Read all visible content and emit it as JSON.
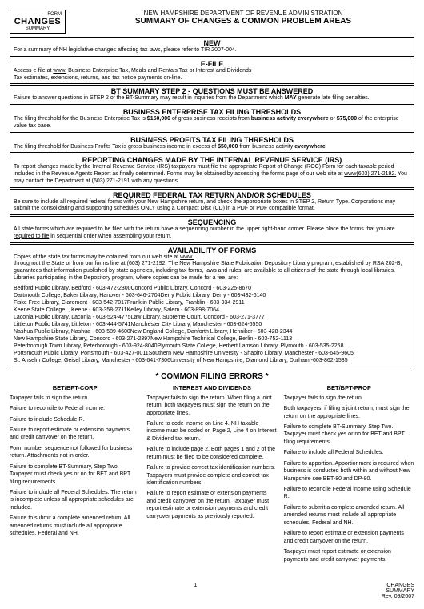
{
  "header": {
    "formLabel": "FORM",
    "changes": "CHANGES",
    "summary": "SUMMARY",
    "dept": "NEW HAMPSHIRE DEPARTMENT OF REVENUE ADMINISTRATION",
    "title": "SUMMARY OF CHANGES & COMMON PROBLEM AREAS"
  },
  "sections": {
    "new": {
      "title": "NEW",
      "body": "For a summary of NH legislative changes affecting tax laws, please refer to TIR 2007-004."
    },
    "efile": {
      "title": "E-FILE",
      "line1a": "Access e-file at ",
      "line1link": "www.",
      "line1b": " Business Enterprise Tax, Meals and Rentals Tax or Interest and Dividends",
      "line2": "Tax estimates, extensions, returns, and tax notice payments on-line."
    },
    "bt2": {
      "title": "BT SUMMARY STEP 2 - QUESTIONS MUST BE ANSWERED",
      "body1": "Failure to answer questions in STEP 2 of the BT-Summary may result in inquiries from the Department which ",
      "may": "MAY",
      "body2": " generate late filing penalties."
    },
    "bet": {
      "title": "BUSINESS ENTERPRISE TAX FILING THRESHOLDS",
      "body1": "The filing threshold for the Business Enterprise Tax is ",
      "amt1": "$150,000",
      "body2": " of gross business receipts from ",
      "bold1": "business activity everywhere",
      "body3": " or ",
      "amt2": "$75,000",
      "body4": " of the enterprise value tax base."
    },
    "bpt": {
      "title": "BUSINESS PROFITS TAX FILING THRESHOLDS",
      "body1": "The filing threshold for Business Profits Tax is gross business income in excess of ",
      "amt": "$50,000",
      "body2": " from business activity ",
      "bold": "everywhere",
      "body3": "."
    },
    "irs": {
      "title": "REPORTING CHANGES MADE BY THE INTERNAL REVENUE SERVICE (IRS)",
      "body": "To report changes made by the Internal Revenue Service (IRS) taxpayers must file the appropriate Report of Change (ROC) Form for each taxable period included in the Revenue Agents Report as finally determined. Forms may be obtained by accessing the forms page of our web site at ",
      "link": "www(603) 271-2192.",
      "body2": " You may contact the Department at (603) 271-2191 with any questions."
    },
    "fed": {
      "title": "REQUIRED FEDERAL TAX RETURN AND/OR SCHEDULES",
      "body": "Be sure to include all required federal forms with your New Hampshire return, and check the appropriate boxes in STEP 2, Return Type. Corporations may submit the consolidating and supporting schedules ONLY using a Compact Disc (CD) in a PDF or PDF compatible format."
    },
    "seq": {
      "title": "SEQUENCING",
      "body1": "All state forms which are required to be filed with the return have a sequencing number in the upper right-hand corner. Please place the forms that you are ",
      "underline": "required to file",
      "body2": " in sequential order when assembling your return."
    },
    "avail": {
      "title": "AVAILABILITY OF FORMS",
      "intro": "Copies of the state tax forms may be obtained from our web site at ",
      "link": "www.",
      "intro2": " throughout the State or from our forms line at (603) 271-2192. The New Hampshire State Publication Depository Library program, established by RSA 202-B, guarantees that information published by state agencies, including tax forms, laws and rules, are available to all citizens of the state through local libraries. Libraries participating in the Depository program, where copies can be made for a fee, are:",
      "libs": [
        "Bedford Public Library, Bedford - 603-472-2300Concord Public Library, Concord - 603-225-8670",
        "Dartmouth College, Baker Library, Hanover - 603-646-2704Derry Public Library, Derry - 603-432-6140",
        "Fiske Free Library, Claremont - 603-542-7017Franklin Public Library, Franklin - 603-934-2911",
        "Keene State College, , Keene - 603-358-2711Kelley Library, Salem - 603-898-7064",
        "Laconia Public Library, Laconia - 603-524-4775Law Library, Supreme Court, Concord - 603-271-3777",
        "Littleton Public Library, Littleton - 603-444-5741Manchester City Library, Manchester - 603-624-6550",
        "Nashua Public Library, Nashua - 603-589-4600New England College, Danforth Library, Henniker - 603-428-2344",
        "New Hampshire State Library, Concord - 603-271-2397New Hampshire Technical College, Berlin - 603-752-1113",
        "Peterborough Town Library, Peterborough - 603-924-8040Plymouth State College, Herbert Lamson Library, Plymouth - 603-535-2258",
        "Portsmouth Public Library, Portsmouth - 603-427-0011Southern New Hampshire University - Shapiro Library, Manchester - 603-645-9605",
        "St. Anselm College, Geisel Library, Manchester - 603-641-7306University of New Hampshire, Diamond Library, Durham -603-862-1535"
      ]
    }
  },
  "commonTitle": "* COMMON FILING ERRORS *",
  "cols": {
    "c1": {
      "title": "BET/BPT-CORP",
      "items": [
        "Taxpayer fails to sign the return.",
        "Failure to reconcile to Federal income.",
        "Failure to include Schedule R.",
        "Failure to report estimate or extension payments and credit carryover on the return.",
        "Form number sequence not followed for business return.\nAttachments not in order.",
        "Failure to complete BT-Summary, Step Two. Taxpayer must check yes or no for BET and BPT filing requirements.",
        "Failure to include all Federal Schedules. The return is incomplete unless all appropriate schedules are included.",
        "Failure to submit a complete amended return. All amended returns must include all appropriate schedules, Federal and NH."
      ]
    },
    "c2": {
      "title": "INTEREST AND DIVIDENDS",
      "items": [
        "Taxpayer fails to sign the return. When filing a joint return, both taxpayers must sign the return on the appropriate lines.",
        "Failure to code income on Line 4. NH taxable income must be coded on Page 2, Line 4 on Interest & Dividend tax return.",
        "Failure to include page 2. Both pages 1 and 2 of the return must be filed to be considered complete.",
        "Failure to provide correct tax identification numbers. Taxpayers must provide complete and correct tax identification numbers.",
        "Failure to report estimate or extension payments and credit carryover on the return. Taxpayer must report estimate or extension payments and credit carryover payments as previously reported."
      ]
    },
    "c3": {
      "title": "BET/BPT-PROP",
      "items": [
        "Taxpayer fails to sign the return.",
        "Both taxpayers, if filing a joint return, must sign the return on the appropriate lines.",
        "Failure to complete BT-Summary, Step Two. Taxpayer must check yes or no for BET and BPT filing requirements.",
        "Failure to include all Federal Schedules.",
        "Failure to apportion. Apportionment is required when business is conducted both within and without New Hampshire see BET-80 and DP-80.",
        "Failure to reconcile Federal income using Schedule R.",
        "Failure to submit a complete amended return. All amended returns must include all appropriate schedules, Federal and NH.",
        "Failure to report estimate or extension payments and credit carryover on the return.",
        "Taxpayer must report estimate or extension payments and credit carryover payments."
      ]
    }
  },
  "footer": {
    "page": "1",
    "r1": "CHANGES",
    "r2": "SUMMARY",
    "r3": "Rev. 09/2007"
  }
}
